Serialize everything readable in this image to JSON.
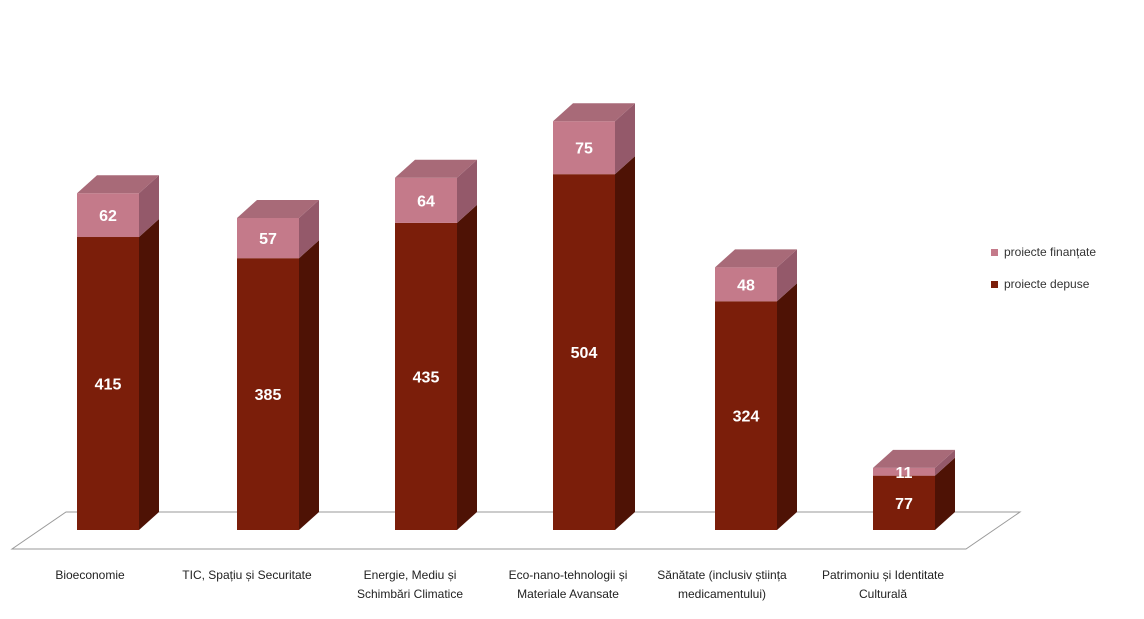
{
  "chart_data": {
    "type": "bar",
    "stacked": true,
    "three_d": true,
    "categories": [
      "Bioeconomie",
      "TIC, Spațiu și Securitate",
      "Energie, Mediu și Schimbări Climatice",
      "Eco-nano-tehnologii și Materiale Avansate",
      "Sănătate (inclusiv știința medicamentului)",
      "Patrimoniu și Identitate Culturală"
    ],
    "series": [
      {
        "name": "proiecte depuse",
        "values": [
          415,
          385,
          435,
          504,
          324,
          77
        ],
        "color": "#7B1E0A"
      },
      {
        "name": "proiecte finanțate",
        "values": [
          62,
          57,
          64,
          75,
          48,
          11
        ],
        "color": "#C47A8A"
      }
    ],
    "title": "",
    "xlabel": "",
    "ylabel": "",
    "ylim": [
      0,
      620
    ],
    "grid": false,
    "legend_position": "right"
  },
  "legend": [
    {
      "label": "proiecte finanțate",
      "color": "#C47A8A"
    },
    {
      "label": "proiecte depuse",
      "color": "#7B1E0A"
    }
  ]
}
